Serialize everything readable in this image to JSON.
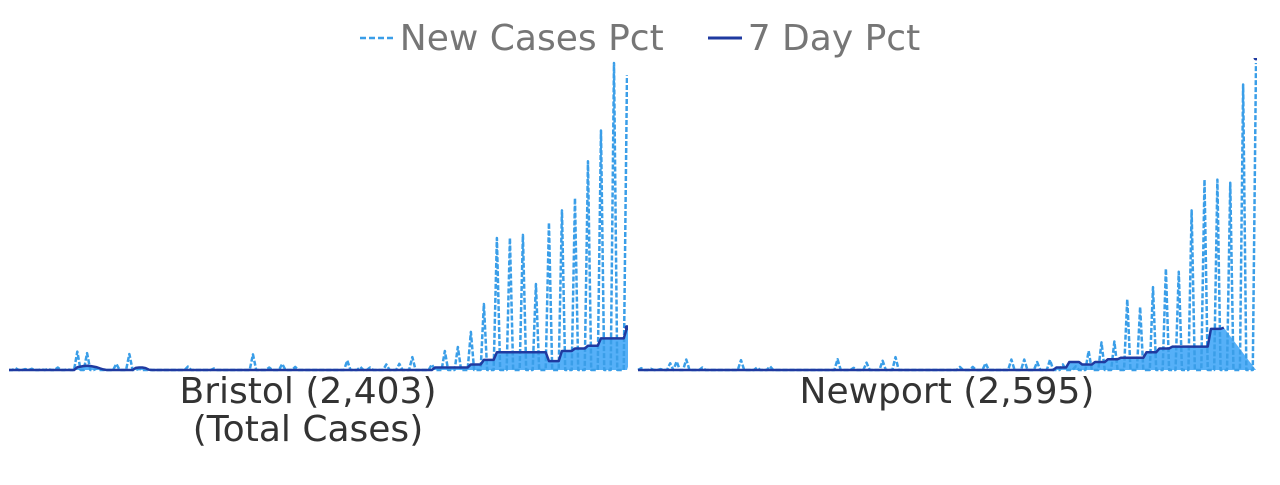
{
  "legend": {
    "new_cases_label": "New Cases Pct",
    "seven_day_label": "7 Day Pct"
  },
  "colors": {
    "new_cases": "#3a9ee8",
    "seven_day_line": "#1f3aa0",
    "seven_day_fill": "#56b0f8"
  },
  "chart_data": [
    {
      "type": "line",
      "title": "Bristol (2,403)",
      "subtitle": "(Total Cases)",
      "ylim": [
        0,
        100
      ],
      "series": [
        {
          "name": "New Cases Pct",
          "values": [
            0,
            0,
            0.6,
            0,
            0,
            0.3,
            0,
            0.4,
            0,
            0,
            0.2,
            0,
            0.3,
            0,
            0,
            0.8,
            0,
            0,
            0.2,
            0,
            0,
            6.0,
            0,
            0,
            5.5,
            0,
            0,
            0.5,
            0,
            0,
            0,
            0,
            0,
            2.0,
            0,
            0,
            0,
            5.2,
            0,
            0,
            0.4,
            0,
            0,
            0,
            0,
            0,
            0,
            0,
            0,
            0,
            0,
            0,
            0,
            0,
            0,
            1.1,
            0,
            0,
            0,
            0,
            0,
            0,
            0,
            0.5,
            0,
            0,
            0,
            0,
            0,
            0,
            0,
            0,
            0,
            0,
            0,
            5.1,
            0,
            0,
            0,
            0,
            0.8,
            0,
            0,
            0,
            2.0,
            0,
            0,
            0,
            1.0,
            0,
            0,
            0,
            0,
            0,
            0,
            0,
            0,
            0,
            0,
            0,
            0,
            0,
            0,
            0,
            3.1,
            0,
            0,
            0,
            1.0,
            0,
            0,
            0.8,
            0,
            0,
            0,
            0,
            1.8,
            0,
            0,
            0,
            2.0,
            0,
            0,
            0,
            4.2,
            0,
            0,
            0,
            0,
            0,
            1.8,
            0,
            0,
            0,
            6.2,
            0,
            0,
            0,
            7.5,
            0,
            0,
            0,
            12.4,
            0,
            0,
            0,
            21.5,
            0,
            0,
            0,
            43.0,
            0,
            0,
            0,
            43.0,
            0,
            0,
            0,
            44.0,
            0,
            0,
            0,
            28.0,
            0,
            0,
            0,
            48.0,
            0,
            0,
            0,
            52.0,
            0,
            0,
            0,
            56.0,
            0,
            0,
            0,
            68.0,
            0,
            0,
            0,
            78.0,
            0,
            0,
            0,
            100.0,
            0,
            0,
            0,
            96.0
          ]
        },
        {
          "name": "7 Day Pct",
          "values": [
            0,
            0,
            0,
            0,
            0,
            0,
            0,
            0,
            0,
            0,
            0,
            0,
            0,
            0,
            0,
            0,
            0,
            0,
            0,
            0,
            0,
            0.9,
            1.1,
            1.3,
            1.4,
            1.3,
            1.1,
            0.9,
            0.5,
            0.2,
            0,
            0,
            0,
            0,
            0,
            0,
            0,
            0,
            0,
            0.7,
            0.8,
            0.8,
            0.6,
            0.1,
            0,
            0,
            0,
            0,
            0,
            0,
            0,
            0,
            0,
            0,
            0,
            0,
            0,
            0,
            0,
            0,
            0,
            0,
            0,
            0,
            0,
            0,
            0,
            0,
            0,
            0,
            0,
            0,
            0,
            0,
            0,
            0,
            0,
            0,
            0,
            0,
            0,
            0,
            0,
            0,
            0,
            0,
            0,
            0,
            0,
            0,
            0,
            0,
            0,
            0,
            0,
            0,
            0,
            0,
            0,
            0,
            0,
            0,
            0,
            0,
            0,
            0,
            0,
            0,
            0,
            0,
            0,
            0,
            0,
            0,
            0,
            0,
            0,
            0,
            0,
            0,
            0,
            0,
            0,
            0,
            0,
            0,
            0,
            0,
            0,
            0,
            0,
            0.8,
            0.8,
            0.8,
            0.8,
            0.8,
            0.8,
            0.8,
            0.8,
            0.8,
            0.8,
            0.8,
            1.8,
            1.8,
            1.8,
            1.8,
            3.3,
            3.3,
            3.3,
            3.3,
            5.8,
            5.8,
            5.8,
            5.8,
            5.8,
            5.8,
            5.8,
            5.8,
            5.8,
            5.8,
            5.8,
            5.8,
            5.8,
            5.8,
            5.8,
            5.8,
            2.9,
            2.9,
            2.9,
            2.9,
            6.2,
            6.2,
            6.2,
            6.2,
            7.0,
            7.0,
            7.0,
            7.0,
            7.9,
            7.9,
            7.9,
            7.9,
            10.3,
            10.3,
            10.3,
            10.3,
            10.3,
            10.3,
            10.3,
            10.3,
            13.8,
            13.8,
            13.8,
            13.8,
            13.4
          ]
        }
      ]
    },
    {
      "type": "line",
      "title": "Newport (2,595)",
      "ylim": [
        0,
        100
      ],
      "series": [
        {
          "name": "New Cases Pct",
          "values": [
            0,
            0.6,
            0,
            0,
            0.4,
            0,
            0,
            0.3,
            0,
            0,
            2.2,
            0,
            2.8,
            0,
            0,
            3.4,
            0,
            0,
            0,
            0,
            0.8,
            0,
            0,
            0,
            0,
            0,
            0,
            0,
            0,
            0,
            0,
            0,
            3.2,
            0,
            0,
            0,
            0,
            0.8,
            0,
            0,
            0,
            1.2,
            0,
            0,
            0,
            0,
            0,
            0,
            0,
            0,
            0,
            0,
            0,
            0,
            0,
            0,
            0,
            0,
            0,
            0,
            0,
            0,
            3.5,
            0,
            0,
            0,
            0,
            0.7,
            0,
            0,
            0,
            2.4,
            0,
            0,
            0,
            0,
            3.0,
            0,
            0,
            0,
            4.2,
            0,
            0,
            0,
            0,
            0,
            0,
            0,
            0,
            0,
            0,
            0,
            0,
            0,
            0,
            0,
            0,
            0,
            0,
            0,
            1.0,
            0,
            0,
            0,
            1.0,
            0,
            0,
            0,
            2.2,
            0,
            0,
            0,
            0,
            0,
            0,
            0,
            3.4,
            0,
            0,
            0,
            3.4,
            0,
            0,
            0,
            2.6,
            0,
            0,
            0,
            3.3,
            0,
            0,
            0,
            1.8,
            0,
            0,
            0,
            1.2,
            0,
            0,
            0,
            6.2,
            0,
            0,
            0,
            9.0,
            0,
            0,
            0,
            9.3,
            0,
            0,
            0,
            23.0,
            0,
            0,
            0,
            20.5,
            0,
            0,
            0,
            27.0,
            0,
            0,
            0,
            33.0,
            0,
            0,
            0,
            32.0,
            0,
            0,
            0,
            52.0,
            0,
            0,
            0,
            62.0,
            0,
            0,
            0,
            62.0,
            0,
            0,
            0,
            61.0,
            0,
            0,
            0,
            93.0,
            0,
            0,
            0,
            100.0
          ]
        },
        {
          "name": "7 Day Pct",
          "values": [
            0,
            0,
            0,
            0,
            0,
            0,
            0,
            0,
            0,
            0,
            0,
            0,
            0,
            0,
            0,
            0,
            0,
            0,
            0,
            0,
            0,
            0,
            0,
            0,
            0,
            0,
            0,
            0,
            0,
            0,
            0,
            0,
            0,
            0,
            0,
            0,
            0,
            0,
            0,
            0,
            0,
            0,
            0,
            0,
            0,
            0,
            0,
            0,
            0,
            0,
            0,
            0,
            0,
            0,
            0,
            0,
            0,
            0,
            0,
            0,
            0,
            0,
            0,
            0,
            0,
            0,
            0,
            0,
            0,
            0,
            0,
            0,
            0,
            0,
            0,
            0,
            0,
            0,
            0,
            0,
            0,
            0,
            0,
            0,
            0,
            0,
            0,
            0,
            0,
            0,
            0,
            0,
            0,
            0,
            0,
            0,
            0,
            0,
            0,
            0,
            0,
            0,
            0,
            0,
            0,
            0,
            0,
            0,
            0,
            0,
            0,
            0,
            0,
            0,
            0,
            0,
            0,
            0,
            0,
            0,
            0,
            0,
            0,
            0,
            0,
            0,
            0,
            0,
            0,
            0,
            0.8,
            0.8,
            0.8,
            0.8,
            2.6,
            2.6,
            2.6,
            2.6,
            1.8,
            1.8,
            1.8,
            1.8,
            2.6,
            2.6,
            2.6,
            2.6,
            3.5,
            3.5,
            3.5,
            3.5,
            4.0,
            4.0,
            4.0,
            4.0,
            4.0,
            4.0,
            4.0,
            4.0,
            5.8,
            5.8,
            5.8,
            5.8,
            7.0,
            7.0,
            7.0,
            7.0,
            7.6,
            7.6,
            7.6,
            7.6,
            7.6,
            7.6,
            7.6,
            7.6,
            7.6,
            7.6,
            7.6,
            7.6,
            13.4,
            13.4,
            13.4,
            13.4,
            13.8
          ]
        }
      ]
    }
  ]
}
